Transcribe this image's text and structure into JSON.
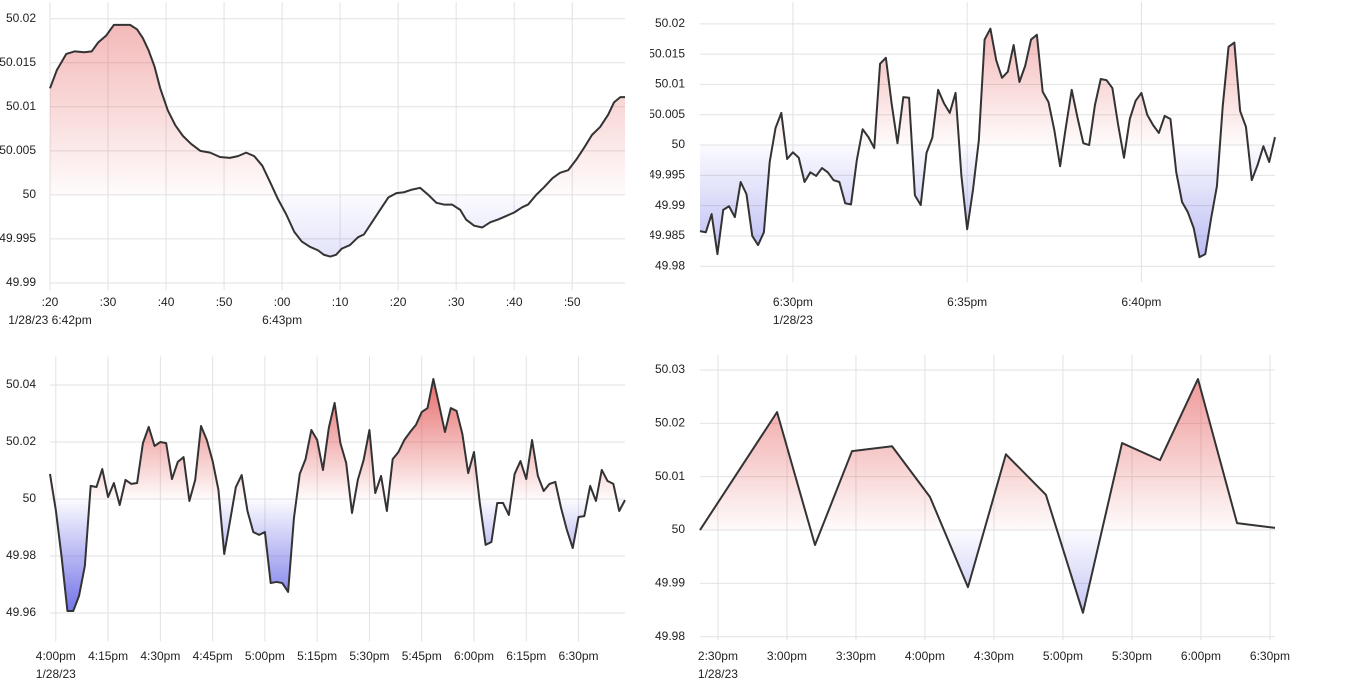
{
  "chart_data": [
    {
      "type": "line",
      "color": "#333333",
      "baseline": 50,
      "fill_colors": {
        "above": "#e03c3c",
        "below": "#3c3ce0"
      },
      "grid": true,
      "x": [
        20,
        21.2,
        22.8,
        24.3,
        25.9,
        27.2,
        28.3,
        29.7,
        31,
        32.4,
        33.8,
        35,
        36,
        37,
        38,
        39,
        40.3,
        41.6,
        42.9,
        44.3,
        45.9,
        47.6,
        49.3,
        51,
        52.4,
        53.8,
        55.2,
        56.6,
        57.9,
        59.3,
        60.7,
        62.1,
        63.4,
        64.8,
        66.2,
        67.2,
        68.3,
        69.3,
        70.3,
        71.7,
        73.1,
        74.1,
        75.5,
        76.9,
        78.3,
        79.7,
        81,
        82.4,
        83.8,
        85.2,
        86.6,
        87.9,
        89.3,
        90.7,
        91.7,
        93.1,
        94.5,
        95.9,
        97.2,
        98.6,
        100,
        101.4,
        102.4,
        103.8,
        105.2,
        106.6,
        107.9,
        109.3,
        110.7,
        112.1,
        113.4,
        114.8,
        116.2,
        117.2,
        118.3,
        119.1
      ],
      "values": [
        50.0121,
        50.0142,
        50.016,
        50.0163,
        50.0162,
        50.0163,
        50.0173,
        50.0181,
        50.0193,
        50.0193,
        50.0193,
        50.0188,
        50.0178,
        50.0164,
        50.0146,
        50.0121,
        50.0096,
        50.0079,
        50.0067,
        50.0058,
        50.005,
        50.0048,
        50.0043,
        50.0042,
        50.0044,
        50.0048,
        50.0044,
        50.0033,
        50.0015,
        49.9995,
        49.9978,
        49.9958,
        49.9947,
        49.9941,
        49.9937,
        49.9932,
        49.993,
        49.9932,
        49.9939,
        49.9943,
        49.9952,
        49.9955,
        49.9969,
        49.9983,
        49.9997,
        50.0002,
        50.0003,
        50.0006,
        50.0008,
        50,
        49.9991,
        49.9989,
        49.9989,
        49.9983,
        49.9972,
        49.9965,
        49.9963,
        49.9969,
        49.9972,
        49.9976,
        49.998,
        49.9986,
        49.9989,
        50,
        50.0009,
        50.0019,
        50.0025,
        50.0028,
        50.004,
        50.0054,
        50.0068,
        50.0077,
        50.0091,
        50.0105,
        50.0111,
        50.0111
      ],
      "xlim": [
        20,
        119.1
      ],
      "ylim": [
        49.9892,
        50.0219
      ],
      "yticks": [
        49.99,
        49.995,
        50,
        50.005,
        50.01,
        50.015,
        50.02
      ],
      "xticks": [
        {
          "value": 20,
          "label": ":20"
        },
        {
          "value": 30,
          "label": ":30"
        },
        {
          "value": 40,
          "label": ":40"
        },
        {
          "value": 50,
          "label": ":50"
        },
        {
          "value": 60,
          "label": ":00"
        },
        {
          "value": 70,
          "label": ":10"
        },
        {
          "value": 80,
          "label": ":20"
        },
        {
          "value": 90,
          "label": ":30"
        },
        {
          "value": 100,
          "label": ":40"
        },
        {
          "value": 110,
          "label": ":50"
        }
      ],
      "x_sublabels": [
        {
          "value": 20,
          "label": "1/28/23 6:42pm"
        },
        {
          "value": 60,
          "label": "6:43pm"
        }
      ]
    },
    {
      "type": "line",
      "color": "#333333",
      "baseline": 50,
      "fill_colors": {
        "above": "#e03c3c",
        "below": "#3c3ce0"
      },
      "grid": true,
      "x": [
        1640,
        1650,
        1660,
        1670,
        1680,
        1690,
        1700,
        1710,
        1720,
        1730,
        1740,
        1750,
        1760,
        1770,
        1780,
        1790,
        1800,
        1810,
        1820,
        1830,
        1840,
        1850,
        1860,
        1870,
        1880,
        1890,
        1900,
        1910,
        1920,
        1930,
        1940,
        1950,
        1960,
        1970,
        1980,
        1990,
        2000,
        2010,
        2020,
        2030,
        2040,
        2050,
        2060,
        2070,
        2080,
        2090,
        2100,
        2110,
        2120,
        2130,
        2140,
        2150,
        2160,
        2170,
        2180,
        2190,
        2200,
        2210,
        2220,
        2230,
        2240,
        2250,
        2260,
        2270,
        2280,
        2290,
        2300,
        2310,
        2320,
        2330,
        2340,
        2350,
        2360,
        2370,
        2380,
        2390,
        2400,
        2410,
        2420,
        2430,
        2440,
        2450,
        2460,
        2470,
        2480,
        2490,
        2500,
        2510,
        2520,
        2530,
        2540,
        2550,
        2560,
        2570,
        2580,
        2590,
        2600,
        2610,
        2620,
        2630
      ],
      "values": [
        49.9858,
        49.9856,
        49.9886,
        49.982,
        49.9893,
        49.9899,
        49.9881,
        49.9939,
        49.9919,
        49.985,
        49.9835,
        49.9856,
        49.9972,
        50.0028,
        50.0053,
        49.9977,
        49.9988,
        49.9979,
        49.9939,
        49.9955,
        49.9949,
        49.9962,
        49.9955,
        49.9942,
        49.9939,
        49.9904,
        49.9902,
        49.9975,
        50.0026,
        50.0013,
        49.9995,
        50.0134,
        50.0144,
        50.0068,
        50.0003,
        50.0079,
        50.0078,
        49.9917,
        49.9901,
        49.9987,
        50.0012,
        50.0091,
        50.0069,
        50.0053,
        50.0086,
        49.995,
        49.9861,
        49.9926,
        50.0007,
        50.0174,
        50.0192,
        50.014,
        50.0111,
        50.0121,
        50.0165,
        50.0104,
        50.0131,
        50.0174,
        50.0182,
        50.0088,
        50.0071,
        50.0025,
        49.9965,
        50.003,
        50.0091,
        50.0045,
        50.0003,
        50,
        50.0066,
        50.0109,
        50.0107,
        50.0094,
        50.0033,
        49.9979,
        50.0043,
        50.0073,
        50.0086,
        50.005,
        50.0033,
        50.002,
        50.0048,
        50.0043,
        49.9955,
        49.9906,
        49.9889,
        49.9863,
        49.9815,
        49.982,
        49.9879,
        49.9932,
        50.0064,
        50.0162,
        50.0169,
        50.0056,
        50.003,
        49.9942,
        49.9967,
        49.9998,
        49.9972,
        50.0013
      ],
      "xlim": [
        1640,
        2630
      ],
      "ylim": [
        49.9774,
        50.0236
      ],
      "yticks": [
        49.98,
        49.985,
        49.99,
        49.995,
        50,
        50.005,
        50.01,
        50.015,
        50.02
      ],
      "xticks": [
        {
          "value": 1800,
          "label": "6:30pm"
        },
        {
          "value": 2100,
          "label": "6:35pm"
        },
        {
          "value": 2400,
          "label": "6:40pm"
        }
      ],
      "x_sublabels": [
        {
          "value": 1800,
          "label": "1/28/23"
        }
      ]
    },
    {
      "type": "line",
      "color": "#333333",
      "baseline": 50,
      "fill_colors": {
        "above": "#e03c3c",
        "below": "#3c3ce0"
      },
      "grid": true,
      "x": [
        14300,
        14400,
        14500,
        14600,
        14700,
        14800,
        14900,
        15000,
        15100,
        15200,
        15300,
        15400,
        15500,
        15600,
        15700,
        15800,
        15900,
        16000,
        16100,
        16200,
        16300,
        16400,
        16500,
        16600,
        16700,
        16800,
        16900,
        17000,
        17100,
        17200,
        17300,
        17400,
        17500,
        17600,
        17700,
        17800,
        17900,
        18000,
        18100,
        18200,
        18300,
        18400,
        18500,
        18600,
        18700,
        18800,
        18900,
        19000,
        19100,
        19200,
        19300,
        19400,
        19500,
        19600,
        19700,
        19800,
        19900,
        20000,
        20100,
        20200,
        20300,
        20400,
        20500,
        20600,
        20700,
        20800,
        20900,
        21000,
        21100,
        21200,
        21300,
        21400,
        21500,
        21600,
        21700,
        21800,
        21900,
        22000,
        22100,
        22200,
        22300,
        22400,
        22500,
        22600,
        22700,
        22800,
        22900,
        23000,
        23100,
        23200,
        23300,
        23400,
        23500,
        23600,
        23700,
        23800,
        23900,
        24000,
        24100,
        24200
      ],
      "values": [
        50.0088,
        49.9961,
        49.9796,
        49.9607,
        49.9607,
        49.966,
        49.9765,
        50.0046,
        50.0042,
        50.0105,
        50.0007,
        50.0056,
        49.9979,
        50.0067,
        50.0053,
        50.0056,
        50.0196,
        50.0253,
        50.0186,
        50.02,
        50.0196,
        50.007,
        50.013,
        50.0147,
        49.9993,
        50.0067,
        50.0256,
        50.0207,
        50.0133,
        50.0032,
        49.9807,
        49.9923,
        50.0042,
        50.0084,
        49.9958,
        49.9884,
        49.9874,
        49.9884,
        49.9705,
        49.9709,
        49.9705,
        49.9674,
        49.9933,
        50.0088,
        50.014,
        50.0242,
        50.0207,
        50.0102,
        50.0249,
        50.0337,
        50.0196,
        50.0126,
        49.9951,
        50.0067,
        50.0137,
        50.0242,
        50.0021,
        50.0081,
        49.9958,
        50.014,
        50.0165,
        50.0207,
        50.0235,
        50.026,
        50.0305,
        50.0319,
        50.0421,
        50.033,
        50.0235,
        50.0319,
        50.0309,
        50.0228,
        50.0091,
        50.0165,
        49.9986,
        49.9839,
        49.9849,
        49.9986,
        49.9986,
        49.9944,
        50.0088,
        50.0133,
        50.007,
        50.0207,
        50.0081,
        50.0028,
        50.0053,
        50.006,
        49.9968,
        49.9891,
        49.9828,
        49.9937,
        49.994,
        50.0046,
        49.9993,
        50.0102,
        50.0063,
        50.0053,
        49.9958,
        49.9996
      ],
      "xlim": [
        14300,
        24200
      ],
      "ylim": [
        49.95,
        50.05
      ],
      "yticks": [
        49.96,
        49.98,
        50,
        50.02,
        50.04
      ],
      "xticks": [
        {
          "value": 14400,
          "label": "4:00pm"
        },
        {
          "value": 15300,
          "label": "4:15pm"
        },
        {
          "value": 16200,
          "label": "4:30pm"
        },
        {
          "value": 17100,
          "label": "4:45pm"
        },
        {
          "value": 18000,
          "label": "5:00pm"
        },
        {
          "value": 18900,
          "label": "5:15pm"
        },
        {
          "value": 19800,
          "label": "5:30pm"
        },
        {
          "value": 20700,
          "label": "5:45pm"
        },
        {
          "value": 21600,
          "label": "6:00pm"
        },
        {
          "value": 22500,
          "label": "6:15pm"
        },
        {
          "value": 23400,
          "label": "6:30pm"
        }
      ],
      "x_sublabels": [
        {
          "value": 14400,
          "label": "1/28/23"
        }
      ]
    },
    {
      "type": "line",
      "color": "#333333",
      "baseline": 50,
      "fill_colors": {
        "above": "#e03c3c",
        "below": "#3c3ce0"
      },
      "grid": true,
      "x": [
        142.2,
        175.7,
        192.2,
        208.3,
        225.7,
        242.2,
        258.7,
        275.2,
        292.6,
        308.7,
        325.7,
        342.2,
        358.7,
        375.7,
        392.2
      ],
      "values": [
        50,
        50.0221,
        49.9972,
        50.0148,
        50.0157,
        50.0062,
        49.9893,
        50.0142,
        50.0066,
        49.9845,
        50.0163,
        50.0131,
        50.0283,
        50.0013,
        50.0004
      ],
      "xlim": [
        142.2,
        392.2
      ],
      "ylim": [
        49.9794,
        50.0328
      ],
      "yticks": [
        49.98,
        49.99,
        50,
        50.01,
        50.02,
        50.03
      ],
      "xticks": [
        {
          "value": 150,
          "label": "2:30pm"
        },
        {
          "value": 180,
          "label": "3:00pm"
        },
        {
          "value": 210,
          "label": "3:30pm"
        },
        {
          "value": 240,
          "label": "4:00pm"
        },
        {
          "value": 270,
          "label": "4:30pm"
        },
        {
          "value": 300,
          "label": "5:00pm"
        },
        {
          "value": 330,
          "label": "5:30pm"
        },
        {
          "value": 360,
          "label": "6:00pm"
        },
        {
          "value": 390,
          "label": "6:30pm"
        }
      ],
      "x_sublabels": [
        {
          "value": 150,
          "label": "1/28/23"
        }
      ]
    }
  ]
}
